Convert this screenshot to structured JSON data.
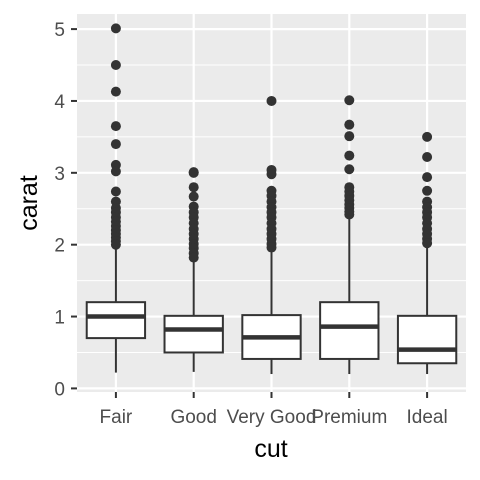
{
  "chart_data": {
    "type": "box",
    "xlabel": "cut",
    "ylabel": "carat",
    "categories": [
      "Fair",
      "Good",
      "Very Good",
      "Premium",
      "Ideal"
    ],
    "yticks": [
      0,
      1,
      2,
      3,
      4,
      5
    ],
    "ylim": [
      -0.05,
      5.21
    ],
    "grid": true,
    "colors": {
      "panel_background": "#ebebeb",
      "grid_line": "#ffffff",
      "box_fill": "#ffffff",
      "box_stroke": "#333333",
      "outlier": "#333333",
      "tick_text": "#4d4d4d"
    },
    "boxes": [
      {
        "category": "Fair",
        "whisker_low": 0.22,
        "q1": 0.7,
        "median": 1.0,
        "q3": 1.2,
        "whisker_high": 1.95,
        "outliers": [
          5.01,
          4.5,
          4.13,
          3.65,
          3.4,
          3.11,
          3.02,
          2.74,
          2.6,
          2.51,
          2.45,
          2.38,
          2.32,
          2.26,
          2.2,
          2.15,
          2.1,
          2.05,
          2.0
        ]
      },
      {
        "category": "Good",
        "whisker_low": 0.23,
        "q1": 0.5,
        "median": 0.82,
        "q3": 1.01,
        "whisker_high": 1.77,
        "outliers": [
          3.01,
          3.0,
          2.8,
          2.67,
          2.53,
          2.45,
          2.38,
          2.3,
          2.22,
          2.15,
          2.08,
          2.01,
          1.95,
          1.88,
          1.82
        ]
      },
      {
        "category": "Very Good",
        "whisker_low": 0.2,
        "q1": 0.41,
        "median": 0.71,
        "q3": 1.02,
        "whisker_high": 1.92,
        "outliers": [
          4.0,
          3.04,
          2.98,
          2.75,
          2.68,
          2.6,
          2.52,
          2.45,
          2.38,
          2.3,
          2.22,
          2.15,
          2.08,
          2.01,
          1.96
        ]
      },
      {
        "category": "Premium",
        "whisker_low": 0.2,
        "q1": 0.41,
        "median": 0.86,
        "q3": 1.2,
        "whisker_high": 2.38,
        "outliers": [
          4.01,
          3.67,
          3.51,
          3.24,
          3.05,
          2.8,
          2.74,
          2.68,
          2.62,
          2.56,
          2.51,
          2.46,
          2.42
        ]
      },
      {
        "category": "Ideal",
        "whisker_low": 0.2,
        "q1": 0.35,
        "median": 0.54,
        "q3": 1.01,
        "whisker_high": 1.97,
        "outliers": [
          3.5,
          3.22,
          2.94,
          2.75,
          2.6,
          2.52,
          2.45,
          2.38,
          2.3,
          2.22,
          2.15,
          2.08,
          2.02
        ]
      }
    ]
  }
}
